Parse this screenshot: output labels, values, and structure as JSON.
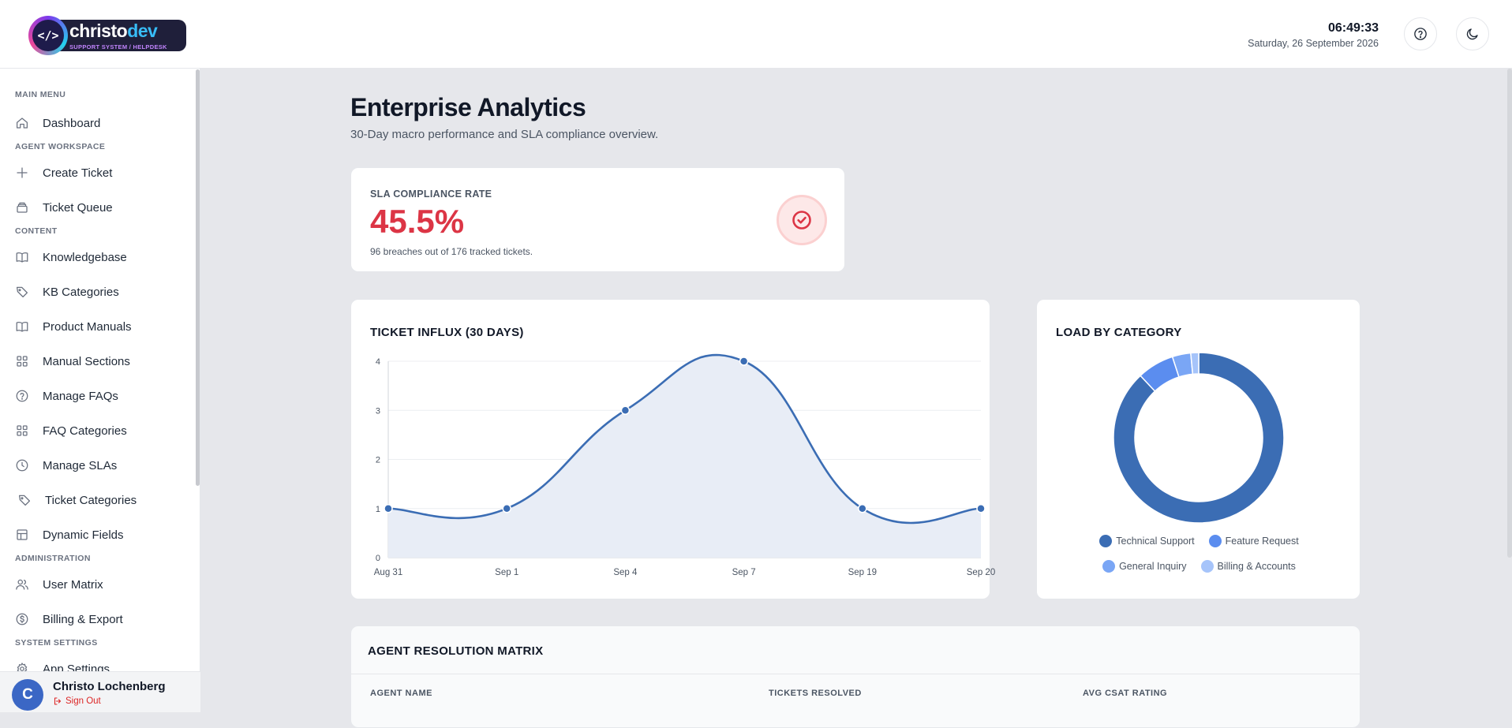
{
  "brand": {
    "name_part1": "christo",
    "name_part2": "dev",
    "tagline": "SUPPORT SYSTEM / HELPDESK",
    "logo_glyph": "</>"
  },
  "header": {
    "time": "06:49:33",
    "date": "Saturday, 26 September 2026",
    "help_icon": "help-circle-icon",
    "theme_icon": "moon-icon"
  },
  "sidebar": {
    "sections": {
      "main": "MAIN MENU",
      "agent": "AGENT WORKSPACE",
      "content": "CONTENT",
      "admin": "ADMINISTRATION",
      "system": "SYSTEM SETTINGS"
    },
    "items": [
      {
        "label": "Dashboard",
        "icon": "home-icon"
      },
      {
        "label": "Create Ticket",
        "icon": "plus-icon"
      },
      {
        "label": "Ticket Queue",
        "icon": "inbox-stack-icon"
      },
      {
        "label": "Knowledgebase",
        "icon": "book-icon"
      },
      {
        "label": "KB Categories",
        "icon": "tag-icon"
      },
      {
        "label": "Product Manuals",
        "icon": "book-icon"
      },
      {
        "label": "Manual Sections",
        "icon": "grid-icon"
      },
      {
        "label": "Manage FAQs",
        "icon": "help-circle-icon"
      },
      {
        "label": "FAQ Categories",
        "icon": "grid-icon"
      },
      {
        "label": "Manage SLAs",
        "icon": "clock-icon"
      },
      {
        "label": "Ticket Categories",
        "icon": "tag-icon"
      },
      {
        "label": "Dynamic Fields",
        "icon": "layout-icon"
      },
      {
        "label": "User Matrix",
        "icon": "users-icon"
      },
      {
        "label": "Billing & Export",
        "icon": "dollar-circle-icon"
      },
      {
        "label": "App Settings",
        "icon": "gear-icon"
      }
    ],
    "user": {
      "initial": "C",
      "name": "Christo Lochenberg",
      "signout": "Sign Out"
    }
  },
  "main": {
    "title": "Enterprise Analytics",
    "subtitle": "30-Day macro performance and SLA compliance overview.",
    "kpi": {
      "label": "SLA COMPLIANCE RATE",
      "value": "45.5%",
      "description": "96 breaches out of 176 tracked tickets.",
      "icon": "check-circle-icon",
      "accent": "#dc3545"
    },
    "influx_title": "TICKET INFLUX (30 DAYS)",
    "load_title": "LOAD BY CATEGORY",
    "matrix": {
      "title": "AGENT RESOLUTION MATRIX",
      "columns": [
        "AGENT NAME",
        "TICKETS RESOLVED",
        "AVG CSAT RATING"
      ]
    }
  },
  "chart_data": [
    {
      "type": "area",
      "title": "TICKET INFLUX (30 DAYS)",
      "categories": [
        "Aug 31",
        "Sep 1",
        "Sep 4",
        "Sep 7",
        "Sep 19",
        "Sep 20"
      ],
      "values": [
        1,
        1,
        3,
        4,
        1,
        1
      ],
      "yticks": [
        "0",
        "1",
        "2",
        "3",
        "4"
      ],
      "ylim": [
        0,
        4
      ],
      "grid": true,
      "color": "#3b6db4",
      "fill": "#e8edf6"
    },
    {
      "type": "pie",
      "variant": "doughnut",
      "title": "LOAD BY CATEGORY",
      "labels": [
        "Technical Support",
        "Feature Request",
        "General Inquiry",
        "Billing & Accounts"
      ],
      "values": [
        88,
        7,
        3.5,
        1.5
      ],
      "colors": [
        "#3b6db4",
        "#5b8def",
        "#7aa6f5",
        "#a6c4fa"
      ],
      "legend": "bottom"
    }
  ]
}
